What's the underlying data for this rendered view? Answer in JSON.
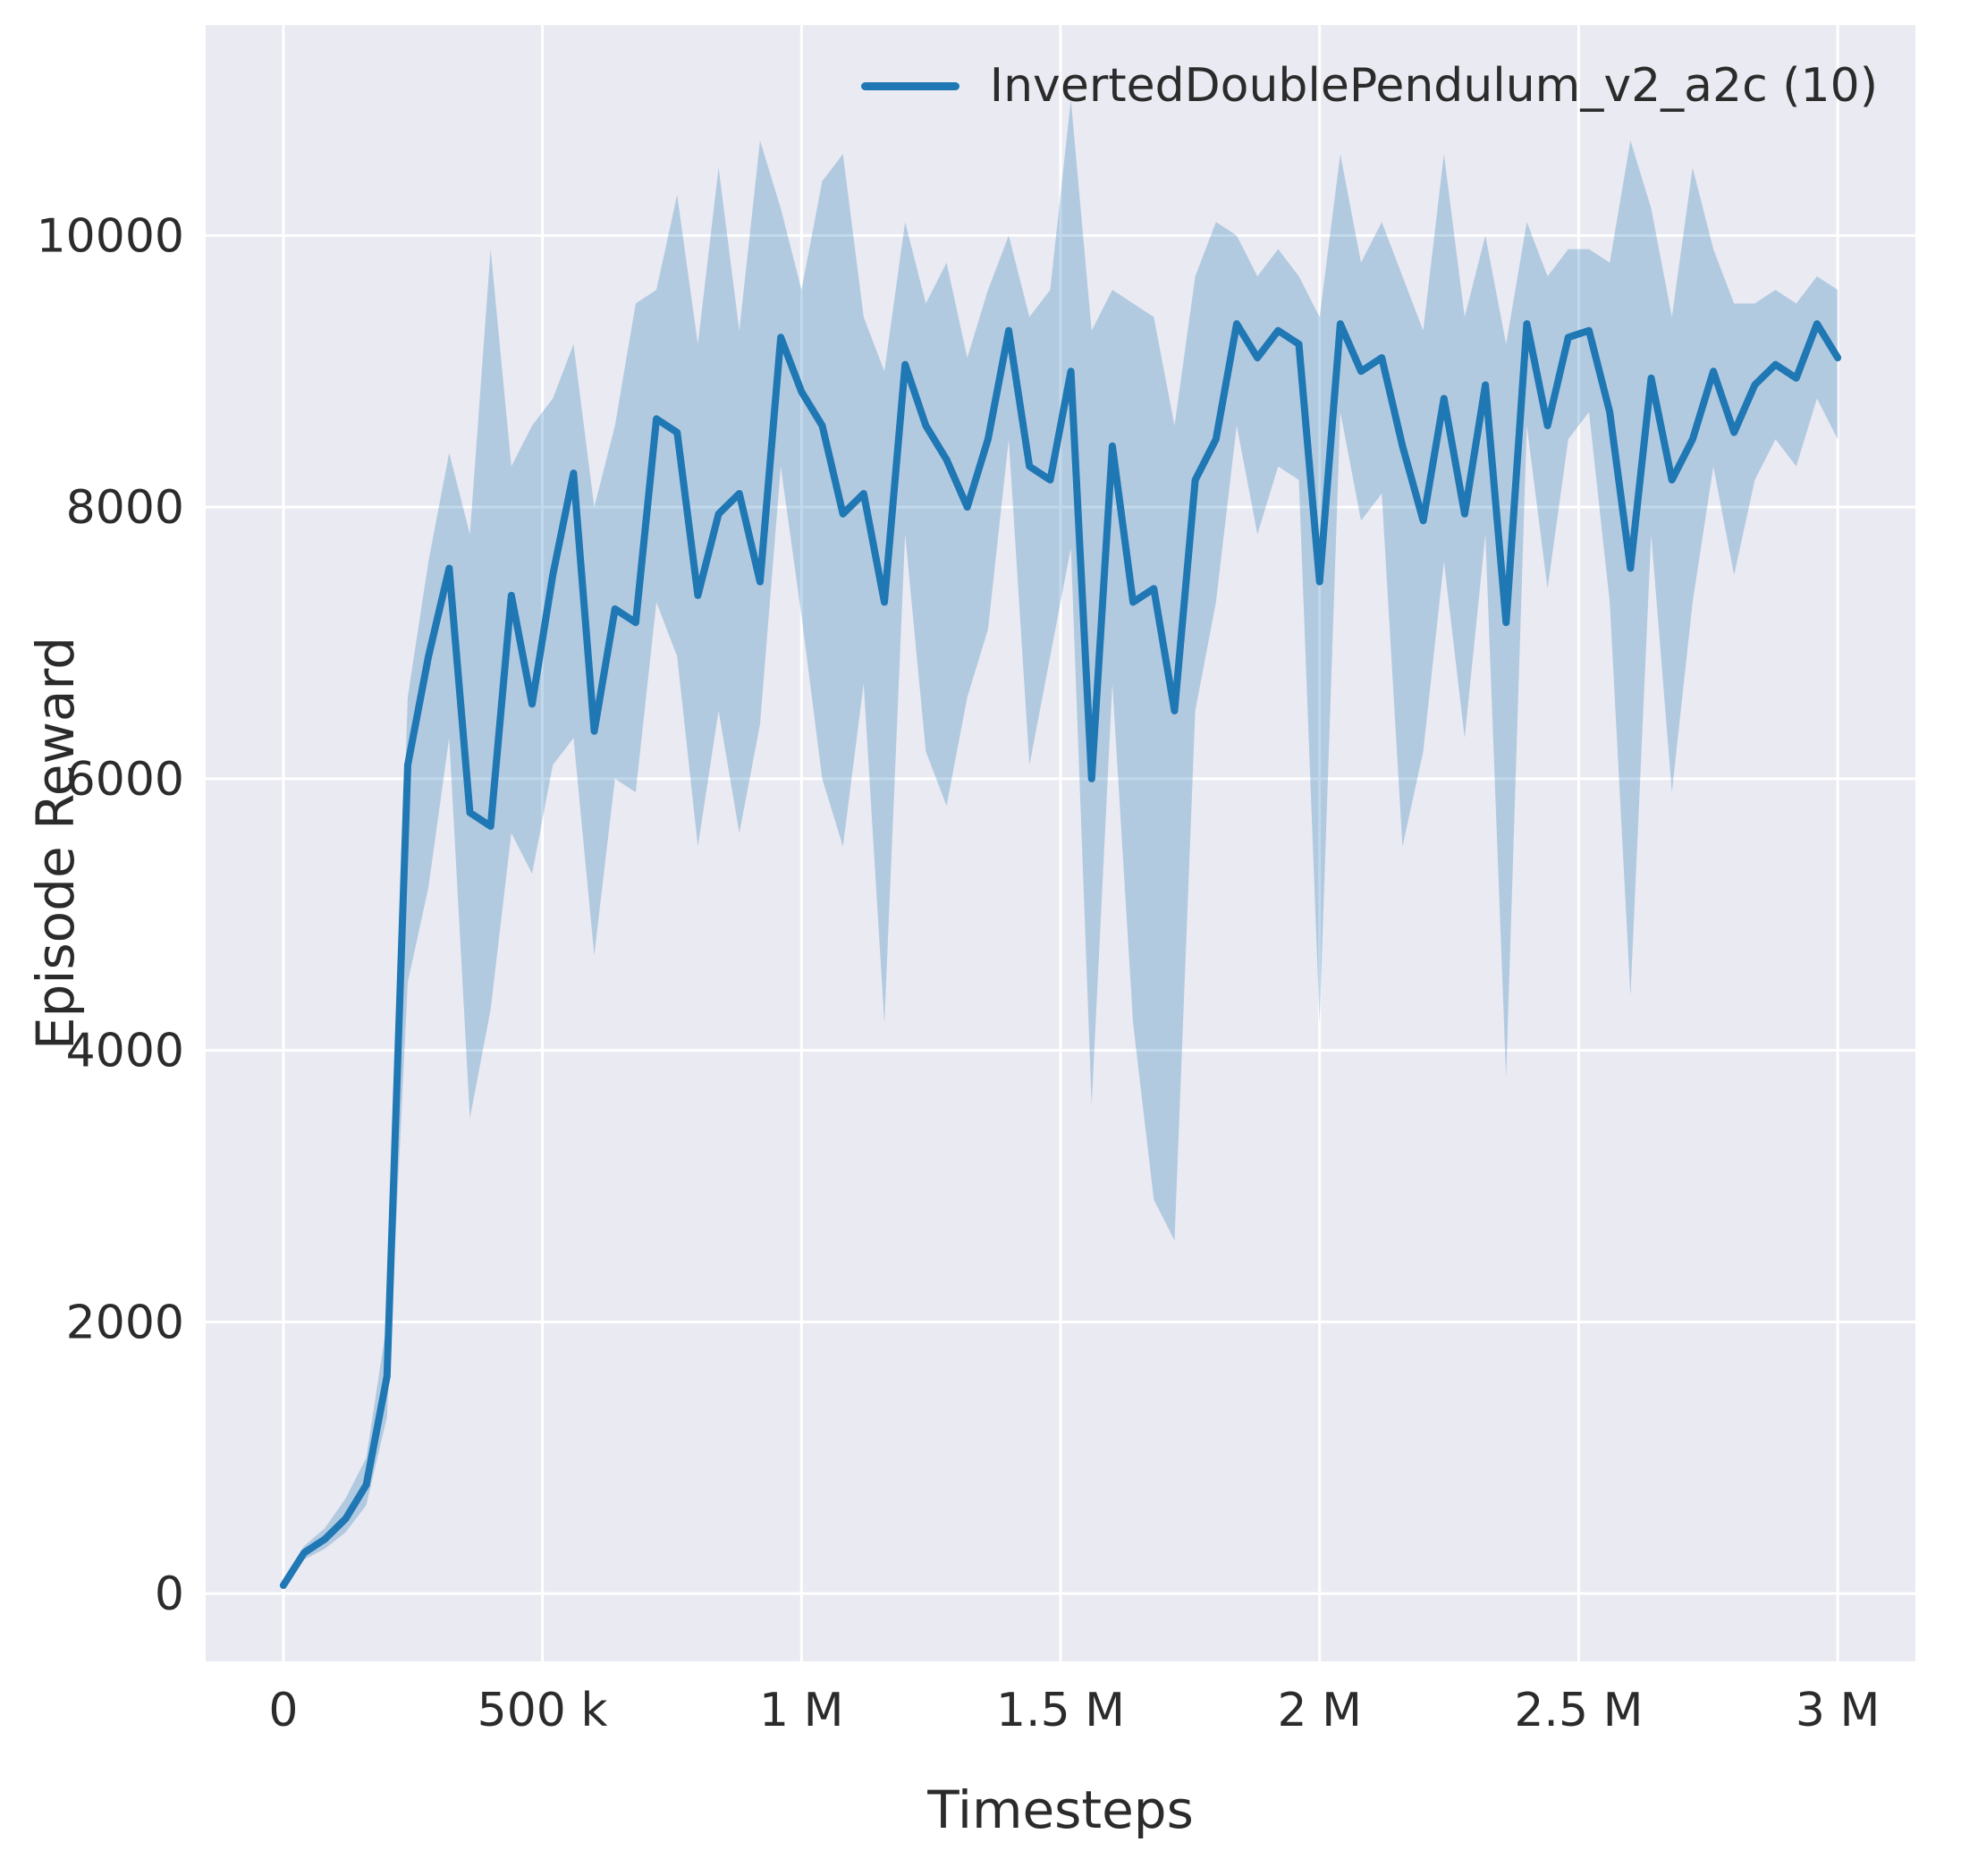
{
  "chart_data": {
    "type": "line",
    "title": "",
    "xlabel": "Timesteps",
    "ylabel": "Episode Reward",
    "grid": true,
    "legend_position": "upper right",
    "legend": [
      {
        "label": "InvertedDoublePendulum_v2_a2c (10)",
        "color": "#1f77b4"
      }
    ],
    "xlim": [
      -150000,
      3150000
    ],
    "ylim": [
      -500,
      11550
    ],
    "xticks": [
      {
        "v": 0,
        "label": "0"
      },
      {
        "v": 500000,
        "label": "500 k"
      },
      {
        "v": 1000000,
        "label": "1 M"
      },
      {
        "v": 1500000,
        "label": "1.5 M"
      },
      {
        "v": 2000000,
        "label": "2 M"
      },
      {
        "v": 2500000,
        "label": "2.5 M"
      },
      {
        "v": 3000000,
        "label": "3 M"
      }
    ],
    "yticks": [
      {
        "v": 0,
        "label": "0"
      },
      {
        "v": 2000,
        "label": "2000"
      },
      {
        "v": 4000,
        "label": "4000"
      },
      {
        "v": 6000,
        "label": "6000"
      },
      {
        "v": 8000,
        "label": "8000"
      },
      {
        "v": 10000,
        "label": "10000"
      }
    ],
    "styles": {
      "plot_bg": "#eaeaf2",
      "grid_color": "#ffffff",
      "text_color": "#2b2b2b",
      "fig_bg": "#ffffff"
    },
    "series": [
      {
        "name": "InvertedDoublePendulum_v2_a2c (10)",
        "color": "#1f77b4",
        "band_opacity": 0.28,
        "line_width": 8,
        "x": [
          0,
          40000,
          80000,
          120000,
          160000,
          200000,
          240000,
          280000,
          320000,
          360000,
          400000,
          440000,
          480000,
          520000,
          560000,
          600000,
          640000,
          680000,
          720000,
          760000,
          800000,
          840000,
          880000,
          920000,
          960000,
          1000000,
          1040000,
          1080000,
          1120000,
          1160000,
          1200000,
          1240000,
          1280000,
          1320000,
          1360000,
          1400000,
          1440000,
          1480000,
          1520000,
          1560000,
          1600000,
          1640000,
          1680000,
          1720000,
          1760000,
          1800000,
          1840000,
          1880000,
          1920000,
          1960000,
          2000000,
          2040000,
          2080000,
          2120000,
          2160000,
          2200000,
          2240000,
          2280000,
          2320000,
          2360000,
          2400000,
          2440000,
          2480000,
          2520000,
          2560000,
          2600000,
          2640000,
          2680000,
          2720000,
          2760000,
          2800000,
          2840000,
          2880000,
          2920000,
          2960000,
          3000000
        ],
        "mean": [
          60,
          300,
          400,
          550,
          800,
          1600,
          6100,
          6900,
          7550,
          5750,
          5650,
          7350,
          6550,
          7500,
          8250,
          6350,
          7250,
          7150,
          8650,
          8550,
          7350,
          7950,
          8100,
          7450,
          9250,
          8850,
          8600,
          7950,
          8100,
          7300,
          9050,
          8600,
          8350,
          8000,
          8500,
          9300,
          8300,
          8200,
          9000,
          6000,
          8450,
          7300,
          7400,
          6500,
          8200,
          8500,
          9350,
          9100,
          9300,
          9200,
          7450,
          9350,
          9000,
          9100,
          8450,
          7900,
          8800,
          7950,
          8900,
          7150,
          9350,
          8600,
          9250,
          9300,
          8700,
          7550,
          8950,
          8200,
          8500,
          9000,
          8550,
          8900,
          9050,
          8950,
          9350,
          9100
        ],
        "low": [
          40,
          250,
          330,
          450,
          650,
          1300,
          4500,
          5200,
          6300,
          3500,
          4300,
          5600,
          5300,
          6100,
          6300,
          4700,
          6000,
          5900,
          7300,
          6900,
          5500,
          6500,
          5600,
          6400,
          8300,
          7200,
          6000,
          5500,
          6700,
          4200,
          7800,
          6200,
          5800,
          6600,
          7100,
          8500,
          6100,
          6900,
          7700,
          3600,
          6700,
          4200,
          2900,
          2600,
          6500,
          7300,
          8600,
          7800,
          8300,
          8200,
          4200,
          8700,
          7900,
          8100,
          5500,
          6200,
          7600,
          6300,
          7800,
          3800,
          8600,
          7400,
          8500,
          8700,
          7300,
          4400,
          7800,
          5900,
          7300,
          8300,
          7500,
          8200,
          8500,
          8300,
          8800,
          8500
        ],
        "high": [
          90,
          350,
          480,
          700,
          1000,
          2000,
          6600,
          7600,
          8400,
          7800,
          9900,
          8300,
          8600,
          8800,
          9200,
          8000,
          8600,
          9500,
          9600,
          10300,
          9200,
          10500,
          9300,
          10700,
          10200,
          9600,
          10400,
          10600,
          9400,
          9000,
          10100,
          9500,
          9800,
          9100,
          9600,
          10000,
          9400,
          9600,
          11000,
          9300,
          9600,
          9500,
          9400,
          8600,
          9700,
          10100,
          10000,
          9700,
          9900,
          9700,
          9400,
          10600,
          9800,
          10100,
          9700,
          9300,
          10600,
          9400,
          10000,
          9200,
          10100,
          9700,
          9900,
          9900,
          9800,
          10700,
          10200,
          9400,
          10500,
          9900,
          9500,
          9500,
          9600,
          9500,
          9700,
          9600
        ]
      }
    ]
  }
}
